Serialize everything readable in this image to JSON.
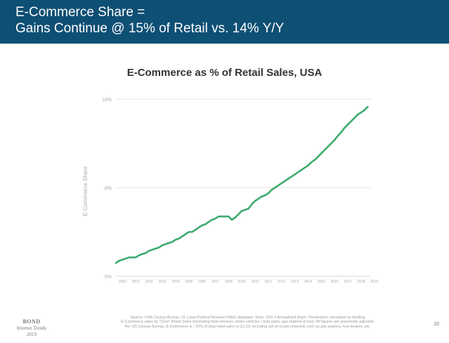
{
  "header": {
    "title_line1": "E-Commerce Share =",
    "title_line2": "Gains Continue @ 15% of Retail vs. 14% Y/Y",
    "background": "#0e4f74"
  },
  "chart_data": {
    "type": "line",
    "title": "E-Commerce as % of Retail Sales, USA",
    "xlabel": "",
    "ylabel": "E-Commerce Share",
    "y_ticks": [
      "0%",
      "8%",
      "16%"
    ],
    "y_tick_values": [
      0,
      8,
      16
    ],
    "ylim": [
      0,
      16
    ],
    "x_ticks": [
      "2000",
      "2001",
      "2002",
      "2003",
      "2004",
      "2005",
      "2006",
      "2007",
      "2008",
      "2009",
      "2010",
      "2011",
      "2012",
      "2013",
      "2014",
      "2015",
      "2016",
      "2017",
      "2018",
      "2019"
    ],
    "xlim": [
      2000,
      2019.25
    ],
    "line_color": "#3daa6e",
    "grid": true,
    "series": [
      {
        "x": [
          2000.0,
          2000.25,
          2000.5,
          2000.75,
          2001.0,
          2001.25,
          2001.5,
          2001.75,
          2002.0,
          2002.25,
          2002.5,
          2002.75,
          2003.0,
          2003.25,
          2003.5,
          2003.75,
          2004.0,
          2004.25,
          2004.5,
          2004.75,
          2005.0,
          2005.25,
          2005.5,
          2005.75,
          2006.0,
          2006.25,
          2006.5,
          2006.75,
          2007.0,
          2007.25,
          2007.5,
          2007.75,
          2008.0,
          2008.25,
          2008.5,
          2008.75,
          2009.0,
          2009.25,
          2009.5,
          2009.75,
          2010.0,
          2010.25,
          2010.5,
          2010.75,
          2011.0,
          2011.25,
          2011.5,
          2011.75,
          2012.0,
          2012.25,
          2012.5,
          2012.75,
          2013.0,
          2013.25,
          2013.5,
          2013.75,
          2014.0,
          2014.25,
          2014.5,
          2014.75,
          2015.0,
          2015.25,
          2015.5,
          2015.75,
          2016.0,
          2016.25,
          2016.5,
          2016.75,
          2017.0,
          2017.25,
          2017.5,
          2017.75,
          2018.0,
          2018.25,
          2018.5,
          2018.75,
          2019.0
        ],
        "values": [
          1.2,
          1.4,
          1.5,
          1.6,
          1.7,
          1.7,
          1.7,
          1.9,
          2.0,
          2.1,
          2.3,
          2.4,
          2.5,
          2.6,
          2.8,
          2.9,
          3.0,
          3.1,
          3.3,
          3.4,
          3.6,
          3.8,
          4.0,
          4.0,
          4.2,
          4.4,
          4.6,
          4.7,
          4.9,
          5.1,
          5.2,
          5.4,
          5.4,
          5.4,
          5.4,
          5.1,
          5.3,
          5.6,
          5.9,
          6.0,
          6.1,
          6.5,
          6.8,
          7.0,
          7.2,
          7.3,
          7.5,
          7.8,
          8.0,
          8.2,
          8.4,
          8.6,
          8.8,
          9.0,
          9.2,
          9.4,
          9.6,
          9.8,
          10.0,
          10.3,
          10.5,
          10.8,
          11.1,
          11.4,
          11.7,
          12.0,
          12.3,
          12.7,
          13.0,
          13.4,
          13.7,
          14.0,
          14.3,
          14.6,
          14.8,
          15.0,
          15.3
        ]
      }
    ]
  },
  "footer": {
    "brand_line1": "BOND",
    "brand_line2": "Internet Trends",
    "brand_line3": "2019",
    "source_line1": "Source: USA Census Bureau, St. Louis Federal Reserve FRED database. Note: 15% = Annualized share. Penetration calculated by dividing",
    "source_line2": "E-Commerce sales by \"Core\" Retail Sales (excluding food services, motor vehicles / auto parts, gas stations & fuel). All figures are seasonally adjusted.",
    "source_line3": "Per US Census Bureau, E-Commerce is ~10% of total retail sales in Q1:19, including out-of-scope channels such as gas stations, fuel dealers, etc.",
    "page_number": "20"
  }
}
